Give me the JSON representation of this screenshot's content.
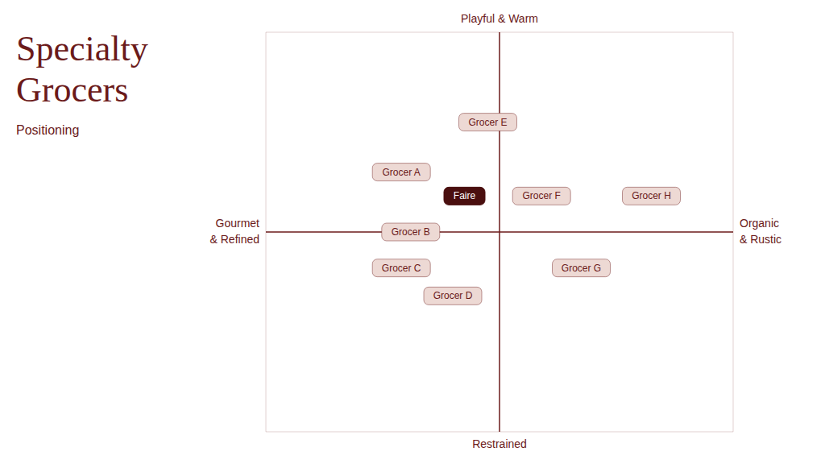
{
  "chart_data": {
    "type": "scatter",
    "title": "Specialty\nGrocers",
    "subtitle": "Positioning",
    "xlabel_left": "Gourmet\n& Refined",
    "xlabel_right": "Organic\n& Rustic",
    "ylabel_top": "Playful & Warm",
    "ylabel_bottom": "Restrained",
    "labels": [
      "Faire",
      "Grocer A",
      "Grocer B",
      "Grocer C",
      "Grocer D",
      "Grocer E",
      "Grocer F",
      "Grocer G",
      "Grocer H"
    ],
    "x": [
      -1.5,
      -4.2,
      -3.8,
      -4.2,
      -2.0,
      -0.5,
      1.8,
      3.5,
      6.5
    ],
    "y": [
      1.8,
      3.0,
      0.0,
      -1.8,
      -3.2,
      5.5,
      1.8,
      -1.8,
      1.8
    ],
    "colors": [
      "#4a0f0f",
      "#edd9d4",
      "#edd9d4",
      "#edd9d4",
      "#edd9d4",
      "#edd9d4",
      "#edd9d4",
      "#edd9d4",
      "#edd9d4"
    ],
    "color": "#6b1a1a",
    "xlim": [
      -10,
      10
    ],
    "ylim": [
      -10,
      10
    ],
    "tick_labels": false,
    "grid": false
  }
}
